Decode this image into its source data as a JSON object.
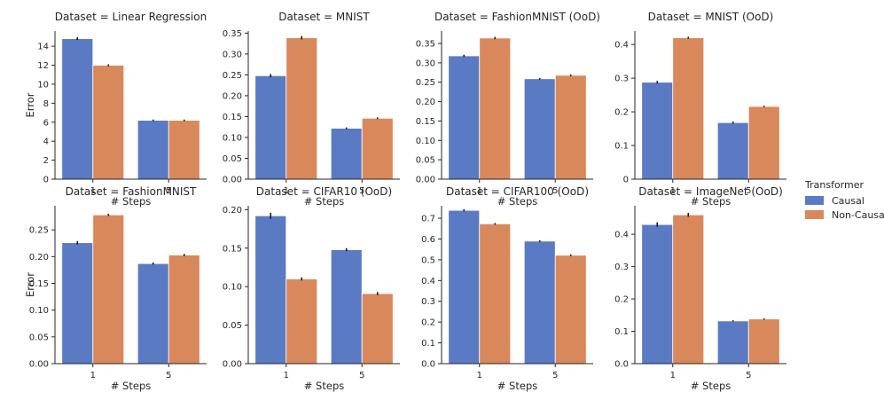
{
  "colors": {
    "causal": "#5a7bc4",
    "noncausal": "#d9885b",
    "axis": "#262626",
    "errbar": "#1a1a1a"
  },
  "legend": {
    "title": "Transformer",
    "entries": [
      "Causal",
      "Non-Causal"
    ],
    "placement": "right"
  },
  "chart_data": [
    {
      "type": "bar",
      "title": "Dataset = Linear Regression",
      "categories": [
        "1",
        "5"
      ],
      "xlabel": "# Steps",
      "ylabel": "Error",
      "ylim": [
        0,
        15.6
      ],
      "yticks": [
        0,
        2,
        4,
        6,
        8,
        10,
        12,
        14
      ],
      "ytick_labels": [
        "0",
        "2",
        "4",
        "6",
        "8",
        "10",
        "12",
        "14"
      ],
      "series": [
        {
          "name": "Causal",
          "values": [
            14.8,
            6.2
          ],
          "err": [
            0.15,
            0.08
          ]
        },
        {
          "name": "Non-Causal",
          "values": [
            12.0,
            6.2
          ],
          "err": [
            0.1,
            0.08
          ]
        }
      ]
    },
    {
      "type": "bar",
      "title": "Dataset = MNIST",
      "categories": [
        "1",
        "5"
      ],
      "xlabel": "# Steps",
      "ylabel": "",
      "ylim": [
        0,
        0.355
      ],
      "yticks": [
        0,
        0.05,
        0.1,
        0.15,
        0.2,
        0.25,
        0.3,
        0.35
      ],
      "ytick_labels": [
        "0.00",
        "0.05",
        "0.10",
        "0.15",
        "0.20",
        "0.25",
        "0.30",
        "0.35"
      ],
      "series": [
        {
          "name": "Causal",
          "values": [
            0.248,
            0.122
          ],
          "err": [
            0.004,
            0.002
          ]
        },
        {
          "name": "Non-Causal",
          "values": [
            0.339,
            0.146
          ],
          "err": [
            0.004,
            0.002
          ]
        }
      ]
    },
    {
      "type": "bar",
      "title": "Dataset = FashionMNIST (OoD)",
      "categories": [
        "1",
        "5"
      ],
      "xlabel": "# Steps",
      "ylabel": "",
      "ylim": [
        0,
        0.382
      ],
      "yticks": [
        0,
        0.05,
        0.1,
        0.15,
        0.2,
        0.25,
        0.3,
        0.35
      ],
      "ytick_labels": [
        "0.00",
        "0.05",
        "0.10",
        "0.15",
        "0.20",
        "0.25",
        "0.30",
        "0.35"
      ],
      "series": [
        {
          "name": "Causal",
          "values": [
            0.318,
            0.259
          ],
          "err": [
            0.003,
            0.002
          ]
        },
        {
          "name": "Non-Causal",
          "values": [
            0.364,
            0.268
          ],
          "err": [
            0.003,
            0.002
          ]
        }
      ]
    },
    {
      "type": "bar",
      "title": "Dataset = MNIST (OoD)",
      "categories": [
        "1",
        "5"
      ],
      "xlabel": "# Steps",
      "ylabel": "",
      "ylim": [
        0,
        0.44
      ],
      "yticks": [
        0,
        0.1,
        0.2,
        0.3,
        0.4
      ],
      "ytick_labels": [
        "0",
        "0.1",
        "0.2",
        "0.3",
        "0.4"
      ],
      "series": [
        {
          "name": "Causal",
          "values": [
            0.288,
            0.168
          ],
          "err": [
            0.004,
            0.003
          ]
        },
        {
          "name": "Non-Causal",
          "values": [
            0.42,
            0.216
          ],
          "err": [
            0.003,
            0.002
          ]
        }
      ]
    },
    {
      "type": "bar",
      "title": "Dataset = FashionMNIST",
      "categories": [
        "1",
        "5"
      ],
      "xlabel": "# Steps",
      "ylabel": "Error",
      "ylim": [
        0,
        0.295
      ],
      "yticks": [
        0,
        0.05,
        0.1,
        0.15,
        0.2,
        0.25
      ],
      "ytick_labels": [
        "0.00",
        "0.05",
        "0.10",
        "0.15",
        "0.20",
        "0.25"
      ],
      "series": [
        {
          "name": "Causal",
          "values": [
            0.226,
            0.187
          ],
          "err": [
            0.003,
            0.002
          ]
        },
        {
          "name": "Non-Causal",
          "values": [
            0.278,
            0.203
          ],
          "err": [
            0.002,
            0.002
          ]
        }
      ]
    },
    {
      "type": "bar",
      "title": "Dataset = CIFAR10 (OoD)",
      "categories": [
        "1",
        "5"
      ],
      "xlabel": "# Steps",
      "ylabel": "",
      "ylim": [
        0,
        0.205
      ],
      "yticks": [
        0,
        0.05,
        0.1,
        0.15,
        0.2
      ],
      "ytick_labels": [
        "0.00",
        "0.05",
        "0.10",
        "0.15",
        "0.20"
      ],
      "series": [
        {
          "name": "Causal",
          "values": [
            0.192,
            0.148
          ],
          "err": [
            0.004,
            0.002
          ]
        },
        {
          "name": "Non-Causal",
          "values": [
            0.11,
            0.091
          ],
          "err": [
            0.002,
            0.002
          ]
        }
      ]
    },
    {
      "type": "bar",
      "title": "Dataset = CIFAR100 (OoD)",
      "categories": [
        "1",
        "5"
      ],
      "xlabel": "# Steps",
      "ylabel": "",
      "ylim": [
        0,
        0.76
      ],
      "yticks": [
        0,
        0.1,
        0.2,
        0.3,
        0.4,
        0.5,
        0.6,
        0.7
      ],
      "ytick_labels": [
        "0.0",
        "0.1",
        "0.2",
        "0.3",
        "0.4",
        "0.5",
        "0.6",
        "0.7"
      ],
      "series": [
        {
          "name": "Causal",
          "values": [
            0.738,
            0.59
          ],
          "err": [
            0.005,
            0.004
          ]
        },
        {
          "name": "Non-Causal",
          "values": [
            0.673,
            0.522
          ],
          "err": [
            0.004,
            0.004
          ]
        }
      ]
    },
    {
      "type": "bar",
      "title": "Dataset = ImageNet (OoD)",
      "categories": [
        "1",
        "5"
      ],
      "xlabel": "# Steps",
      "ylabel": "",
      "ylim": [
        0,
        0.488
      ],
      "yticks": [
        0,
        0.1,
        0.2,
        0.3,
        0.4
      ],
      "ytick_labels": [
        "0.0",
        "0.1",
        "0.2",
        "0.3",
        "0.4"
      ],
      "series": [
        {
          "name": "Causal",
          "values": [
            0.43,
            0.132
          ],
          "err": [
            0.007,
            0.002
          ]
        },
        {
          "name": "Non-Causal",
          "values": [
            0.46,
            0.138
          ],
          "err": [
            0.006,
            0.002
          ]
        }
      ]
    }
  ]
}
